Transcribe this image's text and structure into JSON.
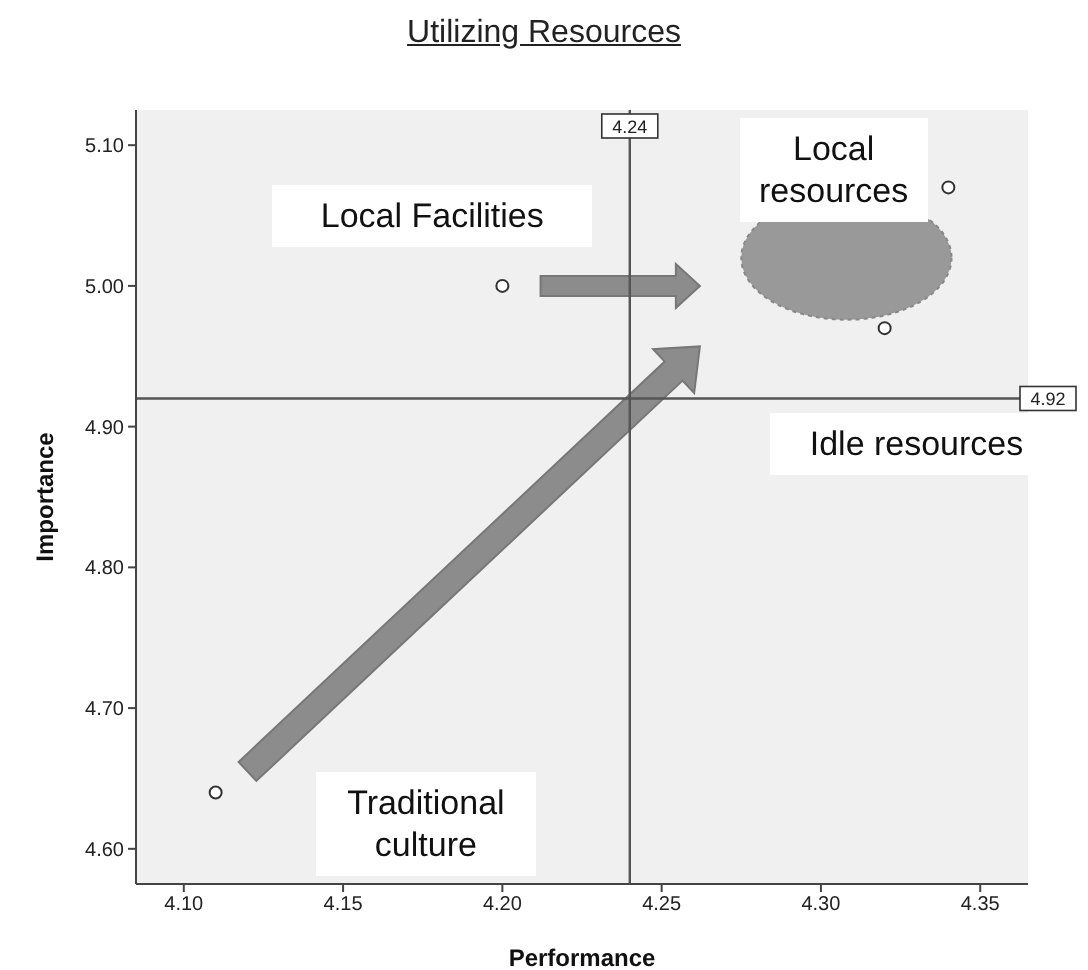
{
  "chart_data": {
    "type": "scatter",
    "title": "Utilizing Resources",
    "xlabel": "Performance",
    "ylabel": "Importance",
    "x": [
      4.11,
      4.2,
      4.32,
      4.34
    ],
    "values": [
      4.64,
      5.0,
      4.97,
      5.07
    ],
    "color": "#333333",
    "marker": "circle",
    "xlim": [
      4.085,
      4.365
    ],
    "xticks": [
      {
        "value": 4.1,
        "label": "4.10"
      },
      4.15,
      {
        "value": 4.2,
        "label": "4.20"
      },
      4.25,
      {
        "value": 4.3,
        "label": "4.30"
      },
      4.35
    ],
    "ylim": [
      4.575,
      5.125
    ],
    "yticks": [
      {
        "value": 4.6,
        "label": "4.60"
      },
      {
        "value": 4.7,
        "label": "4.70"
      },
      {
        "value": 4.8,
        "label": "4.80"
      },
      {
        "value": 4.9,
        "label": "4.90"
      },
      {
        "value": 5.0,
        "label": "5.00"
      },
      {
        "value": 5.1,
        "label": "5.10"
      }
    ],
    "ref_lines": [
      {
        "axis": "x",
        "value": 4.24,
        "label": "4.24",
        "color": "#555555"
      },
      {
        "axis": "y",
        "value": 4.92,
        "label": "4.92",
        "color": "#555555"
      }
    ],
    "annotations": [
      "Local Facilities",
      "Local resources",
      "Idle resources",
      "Traditional culture"
    ]
  }
}
